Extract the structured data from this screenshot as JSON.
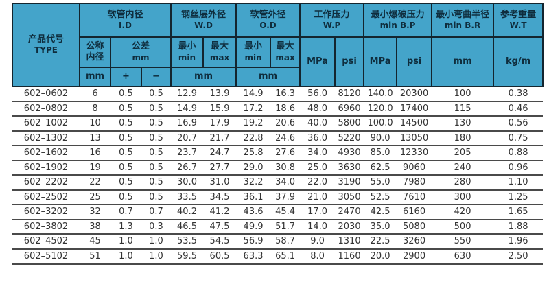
{
  "colors": {
    "header_bg": "#44a4ca",
    "header_border": "#14252f",
    "header_text": "#0f2d3d",
    "body_text": "#333333",
    "row_line": "#4a4a4a",
    "page_bg": "#ffffff"
  },
  "table": {
    "product_code": {
      "zh": "产品代号",
      "en": "TYPE"
    },
    "groups": {
      "id": {
        "zh": "软管内径",
        "en": "I.D"
      },
      "wd": {
        "zh": "钢丝层外径",
        "en": "W.D"
      },
      "od": {
        "zh": "软管外径",
        "en": "O.D"
      },
      "wp": {
        "zh": "工作压力",
        "en": "W.P"
      },
      "bp": {
        "zh": "最小爆破压力",
        "en": "min B.P"
      },
      "br": {
        "zh": "最小弯曲半径",
        "en": "min B.R"
      },
      "wt": {
        "zh": "参考重量",
        "en": "W.T"
      }
    },
    "subheaders": {
      "nominal_id": {
        "zh": "公称\n内径",
        "unit": "mm"
      },
      "tolerance": {
        "zh": "公差",
        "unit": "mm",
        "plus": "+",
        "minus": "−"
      },
      "min": {
        "zh": "最小",
        "en": "min"
      },
      "max": {
        "zh": "最大",
        "en": "max"
      },
      "mpa": "MPa",
      "psi": "psi",
      "mm": "mm",
      "kg_per_m": "kg/m"
    },
    "rows": [
      [
        "602–0602",
        "6",
        "0.5",
        "0.5",
        "12.9",
        "13.9",
        "14.9",
        "16.3",
        "56.0",
        "8120",
        "140.0",
        "20300",
        "100",
        "0.38"
      ],
      [
        "602–0802",
        "8",
        "0.5",
        "0.5",
        "14.9",
        "15.9",
        "17.2",
        "18.6",
        "48.0",
        "6960",
        "120.0",
        "17400",
        "115",
        "0.46"
      ],
      [
        "602–1002",
        "10",
        "0.5",
        "0.5",
        "16.9",
        "17.9",
        "19.2",
        "20.6",
        "40.0",
        "5800",
        "100.0",
        "14500",
        "130",
        "0.56"
      ],
      [
        "602–1302",
        "13",
        "0.5",
        "0.5",
        "20.7",
        "21.7",
        "22.8",
        "24.6",
        "36.0",
        "5220",
        "90.0",
        "13050",
        "180",
        "0.75"
      ],
      [
        "602–1602",
        "16",
        "0.5",
        "0.5",
        "23.7",
        "24.7",
        "25.8",
        "27.6",
        "34.0",
        "4930",
        "85.0",
        "12330",
        "205",
        "0.88"
      ],
      [
        "602–1902",
        "19",
        "0.5",
        "0.5",
        "26.7",
        "27.7",
        "29.0",
        "30.8",
        "25.0",
        "3630",
        "62.5",
        "9060",
        "240",
        "0.96"
      ],
      [
        "602–2202",
        "22",
        "0.5",
        "0.5",
        "30.0",
        "31.0",
        "32.2",
        "34.0",
        "22.0",
        "3190",
        "55.0",
        "7980",
        "280",
        "1.10"
      ],
      [
        "602–2502",
        "25",
        "0.5",
        "0.5",
        "33.5",
        "34.5",
        "36.1",
        "37.9",
        "21.0",
        "3050",
        "52.5",
        "7610",
        "300",
        "1.25"
      ],
      [
        "602–3202",
        "32",
        "0.7",
        "0.7",
        "40.2",
        "41.2",
        "43.6",
        "45.4",
        "17.0",
        "2470",
        "42.5",
        "6160",
        "420",
        "1.65"
      ],
      [
        "602–3802",
        "38",
        "1.3",
        "0.3",
        "46.5",
        "47.5",
        "49.9",
        "51.7",
        "14.0",
        "2030",
        "35.0",
        "5080",
        "500",
        "1.88"
      ],
      [
        "602–4502",
        "45",
        "1.0",
        "1.0",
        "53.5",
        "54.5",
        "56.9",
        "58.7",
        "9.0",
        "1310",
        "22.5",
        "3260",
        "550",
        "1.96"
      ],
      [
        "602–5102",
        "51",
        "1.0",
        "1.0",
        "59.5",
        "60.5",
        "63.3",
        "65.1",
        "8.0",
        "1160",
        "20.0",
        "2900",
        "630",
        "2.50"
      ]
    ]
  }
}
